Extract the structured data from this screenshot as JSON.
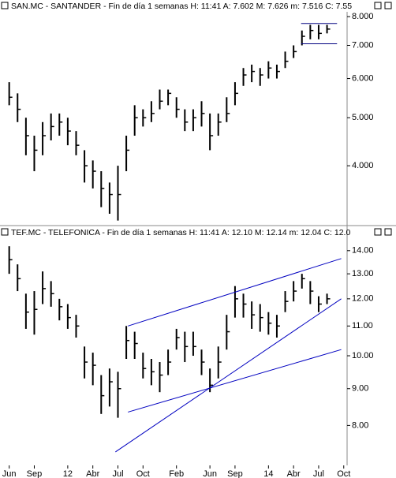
{
  "chart_data": [
    {
      "type": "ohlc",
      "title": "SAN.MC - SANTANDER - Fin de día 1 semanas  H: 11:41  A: 7.602  M: 7.626  m: 7.516  C: 7.55",
      "log_scale": true,
      "color": "#000000",
      "x": [
        0,
        1,
        2,
        3,
        4,
        5,
        6,
        7,
        8,
        9,
        10,
        11,
        12,
        13,
        14,
        15,
        16,
        17,
        18,
        19,
        20,
        21,
        22,
        23,
        24,
        25,
        26,
        27,
        28,
        29,
        30,
        31,
        32,
        33,
        34,
        35,
        36,
        37,
        38
      ],
      "high": [
        5.9,
        5.6,
        5.0,
        4.6,
        4.9,
        5.1,
        5.1,
        5.0,
        4.7,
        4.3,
        4.1,
        3.9,
        3.7,
        4.0,
        4.6,
        5.3,
        5.2,
        5.4,
        5.7,
        5.7,
        5.5,
        5.2,
        5.2,
        5.4,
        5.1,
        5.1,
        5.5,
        5.9,
        6.3,
        6.4,
        6.3,
        6.5,
        6.4,
        6.8,
        7.0,
        7.5,
        7.7,
        7.7,
        7.7
      ],
      "low": [
        5.3,
        4.9,
        4.2,
        3.9,
        4.2,
        4.5,
        4.6,
        4.4,
        4.2,
        3.7,
        3.6,
        3.3,
        3.2,
        3.1,
        3.9,
        4.6,
        4.8,
        4.9,
        5.2,
        5.3,
        5.0,
        4.7,
        4.7,
        4.8,
        4.3,
        4.6,
        4.9,
        5.3,
        5.8,
        5.9,
        5.8,
        6.0,
        6.0,
        6.3,
        6.6,
        7.0,
        7.2,
        7.2,
        7.4
      ],
      "close": [
        5.5,
        5.2,
        4.6,
        4.3,
        4.6,
        4.8,
        4.9,
        4.7,
        4.4,
        4.0,
        3.9,
        3.6,
        3.5,
        3.5,
        4.3,
        5.0,
        5.0,
        5.1,
        5.4,
        5.6,
        5.2,
        4.9,
        5.0,
        5.1,
        4.6,
        4.9,
        5.1,
        5.6,
        6.1,
        6.2,
        6.1,
        6.3,
        6.2,
        6.5,
        6.8,
        7.3,
        7.5,
        7.4,
        7.55
      ],
      "trendlines": [
        {
          "color": "#000080",
          "x": [
            34.9,
            39.2
          ],
          "y": [
            7.75,
            7.75
          ]
        },
        {
          "color": "#000080",
          "x": [
            34.9,
            39.2
          ],
          "y": [
            7.05,
            7.05
          ]
        }
      ],
      "xlim": [
        -1.1,
        40.4
      ],
      "ylim": [
        3.04,
        8.18
      ],
      "yticks": [
        {
          "value": 4,
          "label": "4.000"
        },
        {
          "value": 5,
          "label": "5.000"
        },
        {
          "value": 6,
          "label": "6.000"
        },
        {
          "value": 7,
          "label": "7.000"
        },
        {
          "value": 8,
          "label": "8.000"
        }
      ]
    },
    {
      "type": "ohlc",
      "title": "TEF.MC - TELEFONICA - Fin de día 1 semanas  H: 11:41  A: 12.10  M: 12.14  m: 12.04  C: 12.0",
      "log_scale": true,
      "color": "#000000",
      "x": [
        0,
        1,
        2,
        3,
        4,
        5,
        6,
        7,
        8,
        9,
        10,
        11,
        12,
        13,
        14,
        15,
        16,
        17,
        18,
        19,
        20,
        21,
        22,
        23,
        24,
        25,
        26,
        27,
        28,
        29,
        30,
        31,
        32,
        33,
        34,
        35,
        36,
        37,
        38
      ],
      "high": [
        14.2,
        13.4,
        12.2,
        12.3,
        13.1,
        12.7,
        12.0,
        11.8,
        11.4,
        10.3,
        10.1,
        9.4,
        9.6,
        9.5,
        11.0,
        10.8,
        10.1,
        9.9,
        9.8,
        10.2,
        10.9,
        10.8,
        10.8,
        10.2,
        9.6,
        10.3,
        11.4,
        12.5,
        12.2,
        11.9,
        11.8,
        11.5,
        11.4,
        12.3,
        12.7,
        13.0,
        12.7,
        12.1,
        12.2
      ],
      "low": [
        13.0,
        12.3,
        10.9,
        10.7,
        11.8,
        11.7,
        11.2,
        10.9,
        10.6,
        9.3,
        9.1,
        8.3,
        8.5,
        8.2,
        9.9,
        9.9,
        9.3,
        9.1,
        8.9,
        9.4,
        10.2,
        9.8,
        10.0,
        9.4,
        8.9,
        9.3,
        10.2,
        11.3,
        11.3,
        10.9,
        10.8,
        10.7,
        10.6,
        11.5,
        11.9,
        12.4,
        11.8,
        11.5,
        11.8
      ],
      "close": [
        13.6,
        12.8,
        11.5,
        11.6,
        12.4,
        12.2,
        11.7,
        11.3,
        11.0,
        9.8,
        9.7,
        8.8,
        9.2,
        9.0,
        10.5,
        10.4,
        9.6,
        9.5,
        9.4,
        9.8,
        10.6,
        10.3,
        10.3,
        9.8,
        9.1,
        9.8,
        10.8,
        12.0,
        11.8,
        11.4,
        11.3,
        11.1,
        11.0,
        11.9,
        12.3,
        12.8,
        12.3,
        11.8,
        12.0
      ],
      "trendlines": [
        {
          "color": "#0000c0",
          "x": [
            14.2,
            39.7
          ],
          "y": [
            11.0,
            13.65
          ]
        },
        {
          "color": "#0000c0",
          "x": [
            12.7,
            39.7
          ],
          "y": [
            7.35,
            12.0
          ]
        },
        {
          "color": "#0000c0",
          "x": [
            14.2,
            39.7
          ],
          "y": [
            8.35,
            10.2
          ]
        }
      ],
      "xlim": [
        -1.1,
        40.4
      ],
      "ylim": [
        7.04,
        14.57
      ],
      "xticks": [
        {
          "value": 0,
          "label": "Jun"
        },
        {
          "value": 3,
          "label": "Sep"
        },
        {
          "value": 7,
          "label": "12"
        },
        {
          "value": 10,
          "label": "Abr"
        },
        {
          "value": 13,
          "label": "Jul"
        },
        {
          "value": 16,
          "label": "Oct"
        },
        {
          "value": 20,
          "label": "Feb"
        },
        {
          "value": 24,
          "label": "Jun"
        },
        {
          "value": 27,
          "label": "Sep"
        },
        {
          "value": 31,
          "label": "14"
        },
        {
          "value": 34,
          "label": "Abr"
        },
        {
          "value": 37,
          "label": "Jul"
        },
        {
          "value": 40,
          "label": "Oct"
        }
      ],
      "yticks": [
        {
          "value": 8,
          "label": "8.00"
        },
        {
          "value": 9,
          "label": "9.00"
        },
        {
          "value": 10,
          "label": "10.00"
        },
        {
          "value": 11,
          "label": "11.00"
        },
        {
          "value": 12,
          "label": "12.00"
        },
        {
          "value": 13,
          "label": "13.00"
        },
        {
          "value": 14,
          "label": "14.00"
        }
      ]
    }
  ]
}
